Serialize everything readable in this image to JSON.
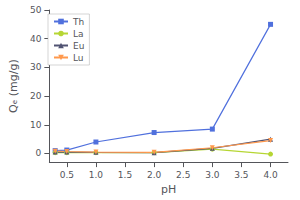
{
  "chart_data": {
    "type": "line",
    "xlabel": "pH",
    "ylabel": "Qₑ (mg/g)",
    "xlim": [
      0.2,
      4.3
    ],
    "ylim": [
      -3,
      50
    ],
    "xticks": [
      0.5,
      {
        "value": 1,
        "label": "1.0"
      },
      1.5,
      {
        "value": 2,
        "label": "2.0"
      },
      2.5,
      {
        "value": 3,
        "label": "3.0"
      },
      3.5,
      {
        "value": 4,
        "label": "4.0"
      }
    ],
    "yticks": [
      0,
      10,
      20,
      30,
      40,
      50
    ],
    "grid": false,
    "legend": "upper left",
    "series": [
      {
        "name": "Th",
        "marker": "square",
        "x": [
          0.3,
          0.5,
          1.0,
          2.0,
          3.0,
          4.0
        ],
        "values": [
          1.0,
          1.2,
          4.0,
          7.3,
          8.5,
          45.0
        ]
      },
      {
        "name": "La",
        "marker": "circle",
        "x": [
          0.3,
          0.5,
          1.0,
          2.0,
          3.0,
          4.0
        ],
        "values": [
          0.3,
          0.3,
          0.3,
          0.3,
          1.5,
          -0.2
        ]
      },
      {
        "name": "Eu",
        "marker": "triangle",
        "x": [
          0.3,
          0.5,
          1.0,
          2.0,
          3.0,
          4.0
        ],
        "values": [
          0.5,
          0.5,
          0.4,
          0.3,
          1.8,
          5.0
        ]
      },
      {
        "name": "Lu",
        "marker": "triangle-down",
        "x": [
          0.3,
          0.5,
          1.0,
          2.0,
          3.0,
          4.0
        ],
        "values": [
          0.8,
          0.7,
          0.5,
          0.4,
          2.0,
          4.5
        ]
      }
    ]
  }
}
